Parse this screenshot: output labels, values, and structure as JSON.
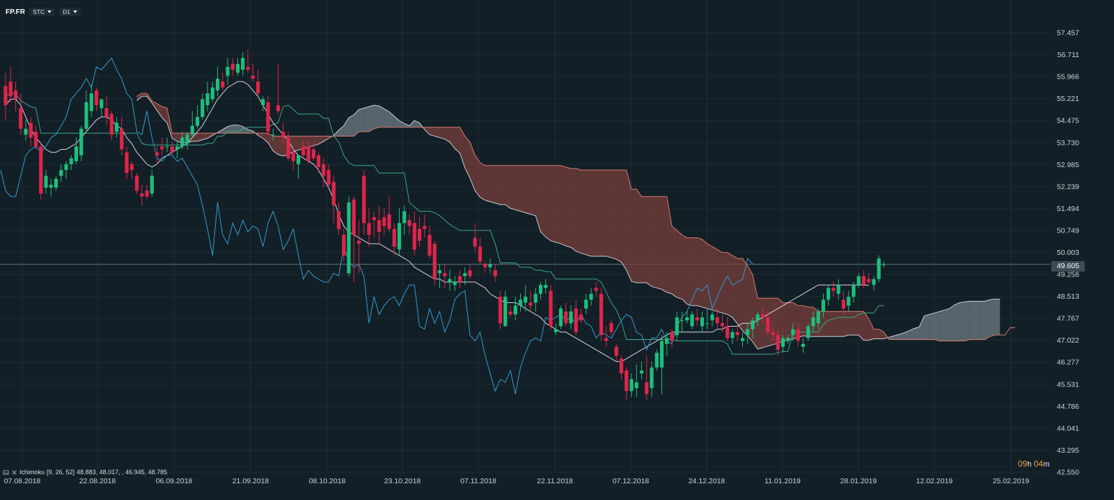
{
  "toolbar": {
    "symbol": "FP.FR",
    "source_label": "STC",
    "interval_label": "D1"
  },
  "legend": {
    "indicator_name": "Ichimoku",
    "params": "[9, 26, 52]",
    "values": "48.883,  48.017,  , 46.945,  48.785"
  },
  "timer": {
    "hours": "09",
    "hours_unit": "h",
    "minutes": "04",
    "minutes_unit": "m"
  },
  "colors": {
    "background": "#131f26",
    "grid": "#1c2c35",
    "candle_up": "#1dbf7e",
    "candle_down": "#e0254a",
    "tenkan": "#d8d8e6",
    "kijun": "#3aa88c",
    "chikou": "#2f9ed1",
    "span_a": "#c8cfd4",
    "span_b": "#d57b6d",
    "cloud_bull": "#6f7c83",
    "cloud_bear": "#7a3f3c",
    "current_line": "#5f7a80",
    "price_tag": "#3c4b55"
  },
  "chart_data": {
    "type": "candlestick",
    "title": "FP.FR",
    "x_labels": [
      "07.08.2018",
      "22.08.2018",
      "06.09.2018",
      "21.09.2018",
      "08.10.2018",
      "23.10.2018",
      "07.11.2018",
      "22.11.2018",
      "07.12.2018",
      "24.12.2018",
      "11.01.2019",
      "28.01.2019",
      "12.02.2019",
      "25.02.2019"
    ],
    "y_ticks": [
      "57.457",
      "56.711",
      "55.966",
      "55.221",
      "54.475",
      "53.730",
      "52.985",
      "52.239",
      "51.494",
      "50.749",
      "50.003",
      "49.258",
      "48.513",
      "47.767",
      "47.022",
      "46.277",
      "45.531",
      "44.786",
      "44.041",
      "43.295",
      "42.550"
    ],
    "ylim": [
      42.55,
      57.457
    ],
    "current_price": 49.605,
    "current_price_label": "49.605",
    "grid": true,
    "legend": "bottom-left",
    "indicator": "Ichimoku [9, 26, 52]",
    "candles": [
      [
        55.65,
        56.1,
        54.5,
        55.0
      ],
      [
        55.8,
        56.3,
        55.1,
        55.3
      ],
      [
        55.5,
        55.8,
        54.8,
        55.2
      ],
      [
        54.9,
        55.4,
        54.0,
        54.2
      ],
      [
        54.0,
        54.5,
        53.8,
        54.2
      ],
      [
        54.4,
        54.6,
        53.6,
        53.9
      ],
      [
        54.1,
        54.3,
        53.5,
        53.6
      ],
      [
        53.6,
        53.7,
        51.8,
        52.0
      ],
      [
        52.2,
        52.8,
        52.0,
        52.6
      ],
      [
        52.2,
        52.5,
        51.9,
        52.3
      ],
      [
        52.2,
        52.6,
        52.1,
        52.5
      ],
      [
        52.6,
        53.0,
        52.4,
        52.8
      ],
      [
        52.8,
        53.1,
        52.5,
        53.0
      ],
      [
        53.0,
        53.3,
        52.8,
        53.2
      ],
      [
        53.1,
        53.9,
        53.0,
        53.6
      ],
      [
        53.3,
        54.3,
        53.1,
        54.2
      ],
      [
        54.2,
        55.5,
        54.1,
        55.1
      ],
      [
        54.8,
        55.7,
        54.6,
        55.4
      ],
      [
        55.5,
        55.6,
        54.8,
        55.0
      ],
      [
        54.9,
        55.2,
        54.6,
        55.2
      ],
      [
        54.9,
        55.3,
        54.3,
        54.6
      ],
      [
        54.7,
        54.8,
        53.8,
        54.0
      ],
      [
        54.1,
        54.6,
        53.9,
        54.4
      ],
      [
        54.2,
        54.6,
        53.3,
        53.5
      ],
      [
        53.4,
        53.6,
        52.5,
        52.7
      ],
      [
        53.0,
        53.1,
        52.5,
        52.8
      ],
      [
        52.6,
        52.7,
        52.0,
        52.1
      ],
      [
        52.0,
        52.3,
        51.6,
        51.9
      ],
      [
        52.1,
        52.3,
        51.8,
        51.9
      ],
      [
        52.0,
        52.8,
        51.9,
        52.6
      ],
      [
        53.4,
        53.6,
        53.0,
        53.3
      ],
      [
        53.6,
        53.9,
        53.3,
        53.5
      ],
      [
        53.6,
        53.9,
        53.4,
        53.6
      ],
      [
        53.6,
        53.8,
        53.3,
        53.4
      ],
      [
        53.5,
        53.8,
        53.2,
        53.6
      ],
      [
        53.6,
        54.1,
        53.5,
        53.9
      ],
      [
        53.7,
        54.1,
        53.5,
        54.0
      ],
      [
        54.0,
        54.8,
        53.9,
        54.3
      ],
      [
        54.3,
        55.0,
        54.2,
        54.6
      ],
      [
        54.6,
        55.4,
        54.5,
        55.2
      ],
      [
        55.0,
        55.8,
        54.8,
        55.4
      ],
      [
        55.2,
        55.8,
        55.1,
        55.6
      ],
      [
        55.5,
        56.3,
        55.3,
        55.9
      ],
      [
        55.8,
        56.1,
        55.5,
        55.6
      ],
      [
        56.0,
        56.6,
        55.7,
        56.3
      ],
      [
        56.4,
        56.6,
        56.0,
        56.2
      ],
      [
        56.1,
        56.6,
        56.0,
        56.4
      ],
      [
        56.2,
        56.8,
        56.0,
        56.6
      ],
      [
        56.3,
        56.9,
        56.1,
        56.2
      ],
      [
        56.0,
        56.4,
        55.8,
        55.9
      ],
      [
        55.8,
        56.2,
        55.3,
        55.4
      ],
      [
        55.0,
        55.3,
        54.8,
        55.2
      ],
      [
        55.1,
        55.3,
        54.0,
        54.1
      ],
      [
        54.0,
        54.2,
        53.8,
        54.0
      ],
      [
        55.0,
        56.4,
        54.7,
        54.8
      ],
      [
        54.1,
        54.4,
        53.7,
        53.9
      ],
      [
        53.9,
        54.1,
        53.1,
        53.2
      ],
      [
        53.4,
        53.6,
        52.8,
        53.1
      ],
      [
        53.0,
        53.2,
        52.5,
        53.3
      ],
      [
        53.6,
        53.8,
        53.2,
        53.3
      ],
      [
        53.6,
        53.8,
        53.0,
        53.1
      ],
      [
        53.5,
        53.7,
        53.1,
        53.2
      ],
      [
        53.3,
        53.4,
        52.7,
        52.9
      ],
      [
        53.0,
        53.2,
        52.2,
        52.6
      ],
      [
        52.8,
        53.0,
        52.2,
        52.3
      ],
      [
        52.4,
        52.6,
        51.0,
        51.6
      ],
      [
        51.4,
        51.7,
        50.6,
        50.8
      ],
      [
        50.6,
        50.8,
        49.7,
        49.9
      ],
      [
        49.3,
        51.9,
        49.2,
        51.7
      ],
      [
        51.8,
        51.9,
        49.0,
        50.6
      ],
      [
        50.4,
        51.1,
        49.3,
        50.3
      ],
      [
        52.6,
        52.8,
        50.6,
        51.0
      ],
      [
        51.0,
        51.5,
        50.2,
        50.6
      ],
      [
        51.2,
        51.4,
        50.5,
        51.1
      ],
      [
        51.1,
        51.6,
        50.3,
        50.7
      ],
      [
        51.2,
        51.5,
        50.6,
        50.9
      ],
      [
        51.3,
        51.9,
        50.7,
        50.8
      ],
      [
        50.8,
        51.0,
        49.9,
        50.2
      ],
      [
        50.1,
        51.5,
        49.9,
        51.0
      ],
      [
        51.0,
        51.6,
        50.6,
        51.4
      ],
      [
        51.1,
        51.3,
        50.6,
        50.9
      ],
      [
        51.0,
        51.4,
        49.9,
        50.1
      ],
      [
        50.8,
        51.2,
        50.2,
        50.4
      ],
      [
        50.9,
        51.3,
        50.5,
        50.8
      ],
      [
        50.6,
        50.9,
        49.8,
        49.9
      ],
      [
        50.3,
        50.4,
        48.9,
        49.1
      ],
      [
        49.3,
        49.6,
        48.8,
        49.4
      ],
      [
        49.3,
        49.6,
        48.8,
        49.2
      ],
      [
        49.0,
        49.4,
        48.7,
        49.1
      ],
      [
        48.9,
        49.2,
        48.7,
        49.0
      ],
      [
        49.2,
        49.4,
        48.8,
        49.0
      ],
      [
        49.2,
        49.5,
        48.9,
        49.3
      ],
      [
        49.4,
        49.6,
        49.1,
        49.2
      ],
      [
        50.5,
        51.0,
        50.0,
        50.2
      ],
      [
        50.2,
        50.5,
        49.6,
        49.7
      ],
      [
        49.6,
        49.7,
        49.3,
        49.5
      ],
      [
        49.5,
        49.8,
        49.3,
        49.6
      ],
      [
        49.4,
        49.6,
        49.0,
        49.2
      ],
      [
        48.5,
        48.7,
        47.4,
        47.6
      ],
      [
        47.5,
        48.7,
        47.5,
        48.5
      ],
      [
        48.0,
        48.2,
        47.8,
        47.9
      ],
      [
        47.9,
        48.5,
        47.7,
        48.2
      ],
      [
        48.2,
        48.6,
        48.0,
        48.4
      ],
      [
        48.3,
        48.9,
        48.0,
        48.5
      ],
      [
        48.3,
        48.7,
        48.0,
        48.2
      ],
      [
        48.3,
        48.8,
        48.0,
        48.6
      ],
      [
        48.6,
        49.0,
        48.4,
        48.9
      ],
      [
        48.8,
        49.1,
        48.6,
        48.9
      ],
      [
        48.7,
        48.9,
        47.4,
        47.5
      ],
      [
        47.3,
        47.6,
        47.2,
        47.4
      ],
      [
        47.5,
        48.2,
        47.4,
        48.1
      ],
      [
        48.0,
        48.3,
        47.5,
        47.6
      ],
      [
        47.6,
        48.2,
        47.4,
        48.0
      ],
      [
        48.1,
        48.4,
        47.2,
        47.3
      ],
      [
        47.9,
        48.1,
        47.6,
        47.7
      ],
      [
        48.1,
        48.6,
        47.9,
        48.4
      ],
      [
        48.4,
        48.8,
        48.2,
        48.6
      ],
      [
        48.8,
        49.0,
        48.5,
        48.7
      ],
      [
        48.6,
        48.8,
        47.0,
        47.2
      ],
      [
        47.1,
        47.5,
        46.8,
        47.0
      ],
      [
        47.6,
        47.7,
        47.2,
        47.3
      ],
      [
        46.8,
        46.9,
        46.3,
        46.5
      ],
      [
        46.4,
        46.5,
        45.7,
        45.9
      ],
      [
        46.0,
        46.1,
        45.0,
        45.3
      ],
      [
        45.3,
        45.9,
        45.1,
        45.7
      ],
      [
        45.4,
        46.2,
        45.1,
        45.6
      ],
      [
        45.9,
        46.3,
        45.7,
        46.0
      ],
      [
        45.6,
        46.5,
        45.0,
        45.2
      ],
      [
        45.4,
        46.3,
        45.1,
        46.1
      ],
      [
        46.1,
        46.7,
        46.0,
        46.6
      ],
      [
        46.1,
        47.2,
        45.2,
        47.0
      ],
      [
        46.9,
        47.3,
        46.5,
        47.1
      ],
      [
        47.3,
        47.4,
        46.8,
        47.0
      ],
      [
        47.2,
        48.0,
        47.0,
        47.8
      ],
      [
        47.7,
        48.0,
        47.3,
        47.7
      ],
      [
        47.7,
        48.0,
        47.6,
        47.8
      ],
      [
        47.5,
        48.0,
        47.4,
        47.9
      ],
      [
        47.8,
        48.1,
        47.5,
        47.7
      ],
      [
        47.5,
        48.0,
        47.3,
        47.8
      ],
      [
        47.6,
        48.1,
        47.4,
        47.6
      ],
      [
        47.7,
        48.0,
        47.5,
        47.9
      ],
      [
        47.8,
        48.1,
        47.4,
        47.6
      ],
      [
        47.6,
        47.9,
        47.3,
        47.5
      ],
      [
        47.5,
        47.8,
        47.0,
        47.1
      ],
      [
        47.1,
        47.4,
        46.9,
        47.3
      ],
      [
        47.3,
        47.5,
        47.0,
        47.2
      ],
      [
        47.0,
        47.3,
        46.8,
        47.1
      ],
      [
        47.2,
        47.6,
        46.9,
        47.4
      ],
      [
        47.4,
        47.8,
        47.1,
        47.7
      ],
      [
        47.7,
        48.0,
        47.5,
        47.9
      ],
      [
        47.9,
        48.1,
        47.6,
        47.8
      ],
      [
        47.8,
        48.0,
        47.2,
        47.3
      ],
      [
        47.3,
        47.5,
        47.0,
        47.2
      ],
      [
        47.2,
        47.4,
        46.5,
        46.7
      ],
      [
        46.8,
        47.2,
        46.6,
        47.1
      ],
      [
        47.0,
        47.2,
        46.9,
        47.1
      ],
      [
        47.2,
        47.6,
        47.0,
        47.4
      ],
      [
        47.4,
        47.6,
        46.8,
        47.0
      ],
      [
        46.8,
        47.1,
        46.6,
        46.9
      ],
      [
        47.1,
        47.6,
        47.0,
        47.5
      ],
      [
        47.5,
        48.0,
        47.3,
        47.8
      ],
      [
        47.6,
        48.1,
        47.4,
        48.0
      ],
      [
        48.0,
        48.6,
        47.8,
        48.4
      ],
      [
        48.4,
        48.9,
        48.2,
        48.8
      ],
      [
        48.8,
        49.0,
        48.5,
        48.7
      ],
      [
        48.6,
        49.1,
        48.4,
        48.9
      ],
      [
        48.4,
        48.7,
        47.9,
        48.1
      ],
      [
        48.2,
        48.7,
        48.0,
        48.5
      ],
      [
        48.5,
        49.0,
        48.3,
        48.9
      ],
      [
        48.9,
        49.3,
        48.8,
        49.2
      ],
      [
        49.2,
        49.4,
        48.8,
        48.9
      ],
      [
        49.1,
        49.3,
        48.9,
        49.0
      ],
      [
        48.9,
        49.2,
        48.7,
        49.1
      ],
      [
        49.1,
        49.9,
        49.0,
        49.8
      ],
      [
        49.6,
        49.7,
        49.5,
        49.605
      ]
    ],
    "tenkan": [
      55.0,
      55.2,
      55.2,
      55.0,
      54.6,
      54.2,
      53.9,
      53.7,
      53.5,
      53.4,
      53.4,
      53.5,
      53.5,
      53.6,
      53.7,
      53.9,
      54.1,
      54.3,
      54.5,
      54.6,
      54.6,
      54.5,
      54.3,
      54.2,
      53.9,
      53.7,
      53.4,
      53.2,
      53.0,
      52.9,
      53.0,
      53.2,
      53.3,
      53.4,
      53.5,
      53.6,
      53.7,
      53.9,
      54.1,
      54.3,
      54.6,
      54.9,
      55.2,
      55.4,
      55.6,
      55.7,
      55.8,
      55.8,
      55.7,
      55.5,
      55.3,
      55.0,
      54.7,
      54.4,
      54.2,
      54.0,
      53.8,
      53.5,
      53.3,
      53.2,
      53.1,
      53.0,
      52.8,
      52.5,
      52.2,
      51.8,
      51.3,
      50.9,
      50.7,
      50.6,
      50.5,
      50.4,
      50.3,
      50.3,
      50.3,
      50.2,
      50.1,
      50.0,
      49.9,
      49.8,
      49.7,
      49.5,
      49.4,
      49.3,
      49.2,
      49.1,
      49.1,
      49.0,
      49.0,
      49.0,
      49.0,
      49.0,
      49.0,
      49.0,
      48.9,
      48.8,
      48.6,
      48.5,
      48.4,
      48.3,
      48.3,
      48.3,
      48.2,
      48.1,
      48.0,
      47.9,
      47.8,
      47.6,
      47.5,
      47.4,
      47.3,
      47.3,
      47.2,
      47.1,
      47.0,
      46.9,
      46.8,
      46.7,
      46.6,
      46.5,
      46.4,
      46.3,
      46.3,
      46.4,
      46.5,
      46.6,
      46.7,
      46.8,
      46.9,
      47.0,
      47.1,
      47.2,
      47.3,
      47.3,
      47.3,
      47.3,
      47.3,
      47.3,
      47.3,
      47.3,
      47.3,
      47.4,
      47.4,
      47.5,
      47.5,
      47.5,
      47.6,
      47.6,
      47.6,
      47.7,
      47.8,
      47.9,
      48.0,
      48.1,
      48.2,
      48.3,
      48.4,
      48.5,
      48.6,
      48.7,
      48.8,
      48.9,
      48.9,
      48.9,
      48.9,
      48.9,
      48.9,
      48.9,
      48.9,
      48.9,
      48.9,
      48.883
    ]
  }
}
